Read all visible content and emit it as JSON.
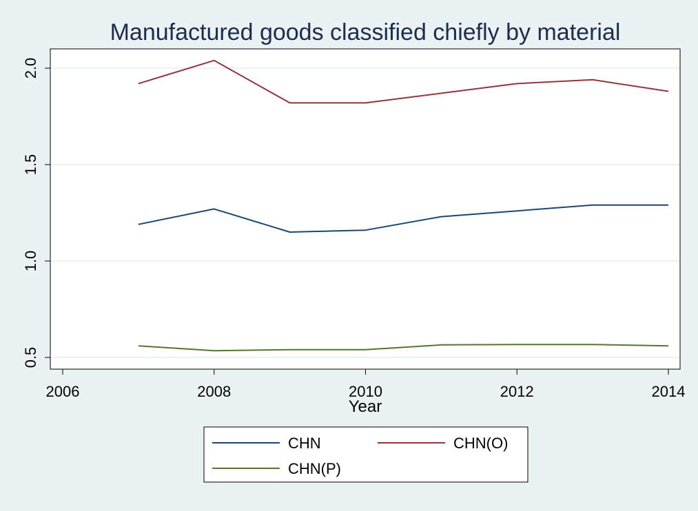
{
  "chart_data": {
    "type": "line",
    "title": "Manufactured goods classified chiefly by material",
    "xlabel": "Year",
    "ylabel": "",
    "xlim": [
      2006,
      2014
    ],
    "ylim": [
      0.5,
      2.0
    ],
    "x_ticks": [
      2006,
      2008,
      2010,
      2012,
      2014
    ],
    "y_ticks": [
      0.5,
      1.0,
      1.5,
      2.0
    ],
    "grid": true,
    "legend_position": "bottom",
    "x": [
      2007,
      2008,
      2009,
      2010,
      2011,
      2012,
      2013,
      2014
    ],
    "series": [
      {
        "name": "CHN",
        "color": "#1a476f",
        "values": [
          1.19,
          1.27,
          1.15,
          1.16,
          1.23,
          1.26,
          1.29,
          1.29
        ]
      },
      {
        "name": "CHN(O)",
        "color": "#90353b",
        "values": [
          1.92,
          2.04,
          1.82,
          1.82,
          1.87,
          1.92,
          1.94,
          1.88
        ]
      },
      {
        "name": "CHN(P)",
        "color": "#55752f",
        "values": [
          0.56,
          0.535,
          0.54,
          0.54,
          0.565,
          0.567,
          0.567,
          0.56
        ]
      }
    ]
  },
  "colors": {
    "background": "#eaf2f3",
    "plot_background": "#ffffff",
    "title": "#1e2d4e"
  }
}
